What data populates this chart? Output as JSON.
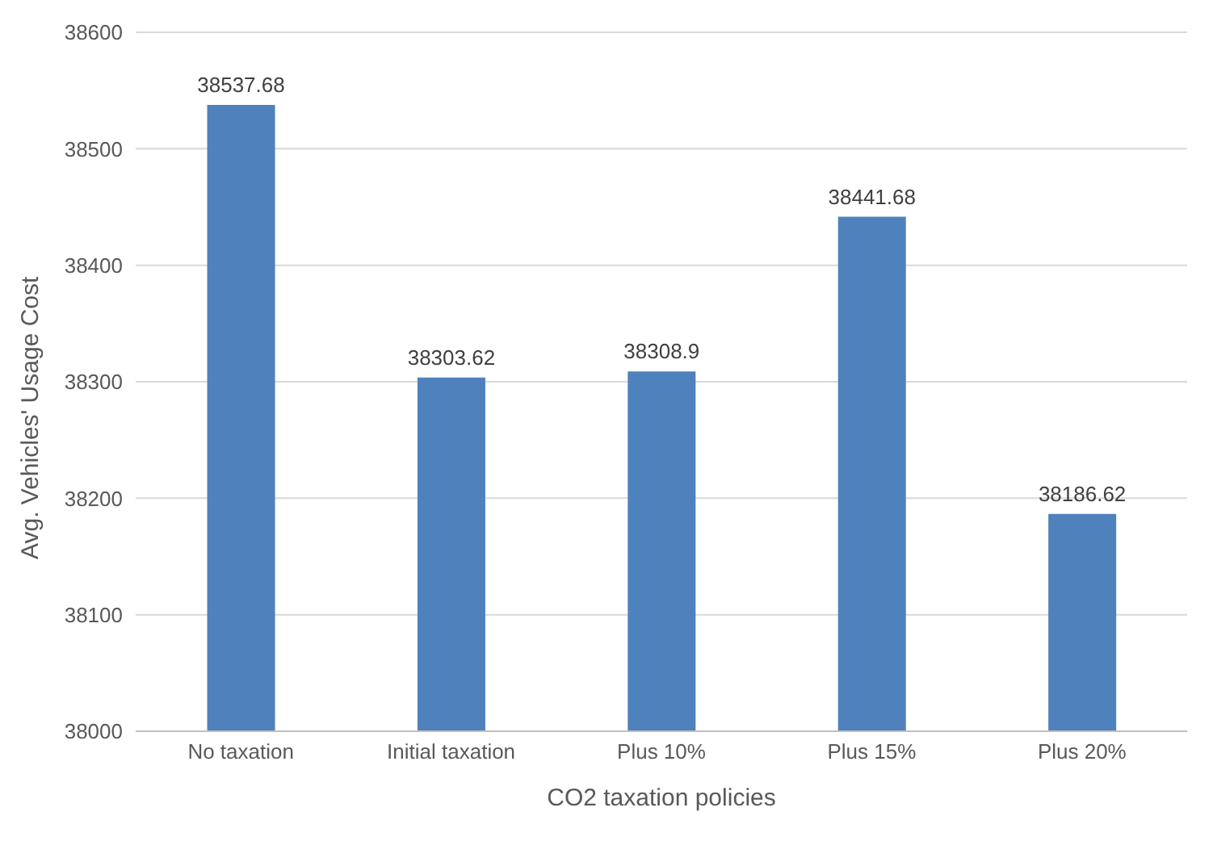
{
  "chart_data": {
    "type": "bar",
    "xlabel": "CO2 taxation policies",
    "ylabel": "Avg. Vehicles' Usage Cost",
    "categories": [
      "No taxation",
      "Initial taxation",
      "Plus 10%",
      "Plus 15%",
      "Plus 20%"
    ],
    "values": [
      38537.68,
      38303.62,
      38308.9,
      38441.68,
      38186.62
    ],
    "color": "#4f81bd",
    "ylim": [
      38000,
      38600
    ],
    "yticks": [
      38000,
      38100,
      38200,
      38300,
      38400,
      38500,
      38600
    ],
    "grid": "y",
    "data_labels": true,
    "legend": false
  }
}
